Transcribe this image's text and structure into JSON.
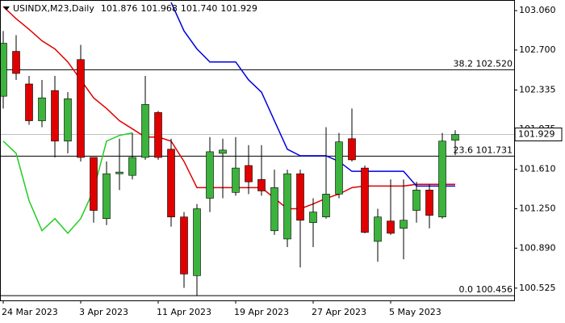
{
  "chart_data": {
    "type": "candlestick",
    "title": "USINDX,M23,Daily",
    "title_values": [
      "101.876",
      "101.968",
      "101.740",
      "101.929"
    ],
    "categories": [
      "24 Mar 2023",
      null,
      null,
      null,
      null,
      null,
      "3 Apr 2023",
      null,
      null,
      null,
      null,
      null,
      "11 Apr 2023",
      null,
      null,
      null,
      null,
      null,
      "19 Apr 2023",
      null,
      null,
      null,
      null,
      null,
      "27 Apr 2023",
      null,
      null,
      null,
      null,
      null,
      "5 May 2023",
      null,
      null,
      null,
      null,
      null
    ],
    "open": [
      102.278,
      102.688,
      102.39,
      102.054,
      102.33,
      101.868,
      102.613,
      101.719,
      101.16,
      101.57,
      101.555,
      101.719,
      102.129,
      101.794,
      101.175,
      100.639,
      101.346,
      101.756,
      101.399,
      101.645,
      101.518,
      101.049,
      100.974,
      101.57,
      101.123,
      101.175,
      101.384,
      101.89,
      101.622,
      100.952,
      101.138,
      101.071,
      101.235,
      101.421,
      101.175,
      101.876
    ],
    "high": [
      102.874,
      102.836,
      102.464,
      102.427,
      102.464,
      102.315,
      102.747,
      101.719,
      101.682,
      101.89,
      101.943,
      102.464,
      102.144,
      101.89,
      101.22,
      101.294,
      101.905,
      101.89,
      101.905,
      101.831,
      101.831,
      101.607,
      101.607,
      101.607,
      101.346,
      101.995,
      101.943,
      102.166,
      101.645,
      101.25,
      101.518,
      101.518,
      101.496,
      101.473,
      101.943,
      101.968
    ],
    "low": [
      102.166,
      102.427,
      102.017,
      101.995,
      101.719,
      101.756,
      101.682,
      101.123,
      101.101,
      101.421,
      101.518,
      101.697,
      101.697,
      101.086,
      100.527,
      100.453,
      101.22,
      101.346,
      101.369,
      101.384,
      101.369,
      101.011,
      100.9,
      100.714,
      100.9,
      101.16,
      101.346,
      101.682,
      101.026,
      100.766,
      101.011,
      100.788,
      101.123,
      101.071,
      101.16,
      101.74
    ],
    "close": [
      102.762,
      102.486,
      102.054,
      102.263,
      101.868,
      102.255,
      101.719,
      101.235,
      101.57,
      101.585,
      101.719,
      102.203,
      101.719,
      101.175,
      100.654,
      101.25,
      101.771,
      101.786,
      101.622,
      101.496,
      101.413,
      101.443,
      101.57,
      101.145,
      101.22,
      101.384,
      101.861,
      101.697,
      101.034,
      101.175,
      101.026,
      101.145,
      101.421,
      101.19,
      101.868,
      101.929
    ],
    "up_color": "#3cb33c",
    "down_color": "#e00000",
    "series": [
      {
        "color": "#e00000",
        "values": [
          103.097,
          102.986,
          102.889,
          102.784,
          102.71,
          102.591,
          102.427,
          102.263,
          102.166,
          102.054,
          101.98,
          101.905,
          101.905,
          101.868,
          101.682,
          101.443,
          101.443,
          101.443,
          101.443,
          101.443,
          101.443,
          101.346,
          101.25,
          101.25,
          101.294,
          101.346,
          101.384,
          101.443,
          101.458,
          101.458,
          101.458,
          101.458,
          101.473,
          101.473,
          101.473,
          101.473
        ]
      },
      {
        "color": "#0000e0",
        "values": [
          null,
          null,
          null,
          null,
          null,
          null,
          null,
          null,
          null,
          null,
          null,
          null,
          null,
          103.135,
          102.874,
          102.71,
          102.591,
          102.591,
          102.591,
          102.427,
          102.315,
          102.054,
          101.794,
          101.734,
          101.734,
          101.734,
          101.682,
          101.592,
          101.592,
          101.592,
          101.592,
          101.592,
          101.458,
          101.458,
          101.458,
          101.458
        ]
      },
      {
        "color": "#22cc22",
        "values": [
          101.868,
          101.756,
          101.324,
          101.049,
          101.16,
          101.026,
          101.16,
          101.421,
          101.868,
          101.92,
          101.943,
          null,
          null,
          null,
          null,
          null,
          null,
          null,
          null,
          null,
          null,
          null,
          null,
          null,
          null,
          null,
          null,
          null,
          null,
          null,
          null,
          null,
          null,
          null,
          null,
          null
        ]
      }
    ],
    "levels": [
      {
        "label": "38.2 102.520",
        "value": 102.52
      },
      {
        "label": "23.6 101.731",
        "value": 101.731
      },
      {
        "label": "0.0 100.456",
        "value": 100.456
      }
    ],
    "last_price": {
      "value": 101.929,
      "label": "101.929"
    },
    "ylim": [
      100.413,
      103.157
    ],
    "yticks": [
      {
        "value": 103.06,
        "label": "103.060"
      },
      {
        "value": 102.7,
        "label": "102.700"
      },
      102.335,
      101.975,
      {
        "value": 101.61,
        "label": "101.610"
      },
      {
        "value": 101.25,
        "label": "101.250"
      },
      {
        "value": 100.89,
        "label": "100.890"
      },
      100.525
    ]
  }
}
